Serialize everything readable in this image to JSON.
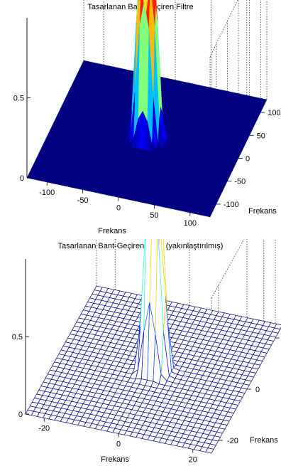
{
  "chart_data": [
    {
      "type": "surface",
      "title": "Tasarlanan Bant-Geçiren Filtre",
      "xlabel": "Frekans",
      "ylabel": "Frekans",
      "zlabel": "",
      "x_range": [
        -128,
        128
      ],
      "y_range": [
        -128,
        128
      ],
      "z_range": [
        0,
        1
      ],
      "x_ticks": [
        100,
        50,
        0,
        -50,
        -100
      ],
      "y_ticks": [
        100,
        50,
        0,
        -50,
        -100
      ],
      "z_ticks": [
        0,
        0.5
      ],
      "x_tick_labels": [
        "100",
        "50",
        "0",
        "-50",
        "-100"
      ],
      "y_tick_labels": [
        "100",
        "50",
        "0",
        "-50",
        "-100"
      ],
      "z_tick_labels": [
        "0",
        "0.5"
      ],
      "peak_value": 1,
      "shading": "interp",
      "colormap": "jet",
      "grid": true
    },
    {
      "type": "mesh",
      "title": "Tasarlanan Bant-Geçiren Filtre (yakınlaştırılmış)",
      "xlabel": "Frekans",
      "ylabel": "Frekans",
      "zlabel": "",
      "x_range": [
        -25,
        25
      ],
      "y_range": [
        -25,
        25
      ],
      "z_range": [
        0,
        1
      ],
      "x_ticks": [
        20,
        0,
        -20
      ],
      "y_ticks": [
        20,
        0,
        -20
      ],
      "z_ticks": [
        0,
        0.5
      ],
      "x_tick_labels": [
        "20",
        "0",
        "-20"
      ],
      "y_tick_labels": [
        "20",
        "0",
        "-20"
      ],
      "z_tick_labels": [
        "0",
        "0.5"
      ],
      "peak_value": 1,
      "colormap": "jet",
      "grid": true
    }
  ]
}
